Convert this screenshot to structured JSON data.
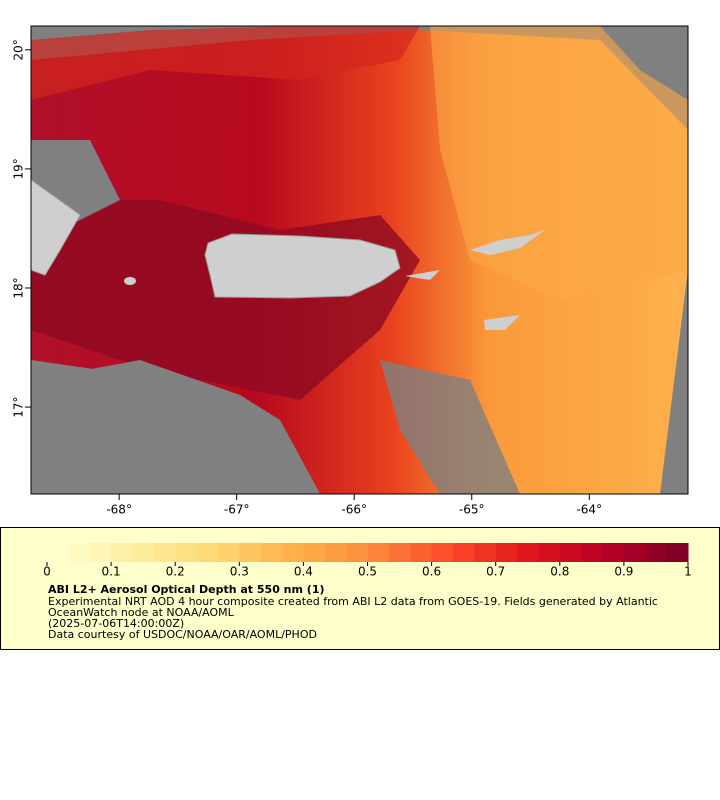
{
  "map": {
    "xlim": [
      -68.75,
      -63.16
    ],
    "ylim": [
      16.27,
      20.2
    ],
    "xticks": [
      {
        "value": -68,
        "label": "-68°"
      },
      {
        "value": -67,
        "label": "-67°"
      },
      {
        "value": -66,
        "label": "-66°"
      },
      {
        "value": -65,
        "label": "-65°"
      },
      {
        "value": -64,
        "label": "-64°"
      }
    ],
    "yticks": [
      {
        "value": 17,
        "label": "17°"
      },
      {
        "value": 18,
        "label": "18°"
      },
      {
        "value": 19,
        "label": "19°"
      },
      {
        "value": 20,
        "label": "20°"
      }
    ]
  },
  "colorbar": {
    "lim": [
      0,
      1
    ],
    "ticks": [
      0,
      0.1,
      0.2,
      0.3,
      0.4,
      0.5,
      0.6,
      0.7,
      0.8,
      0.9,
      1
    ],
    "colors": [
      "#ffffcc",
      "#ffeda0",
      "#fed976",
      "#feb24c",
      "#fd8d3c",
      "#fc4e2a",
      "#e31a1c",
      "#bd0026",
      "#800026"
    ]
  },
  "legend": {
    "title": "ABI L2+ Aerosol Optical Depth at 550 nm (1)",
    "lines": [
      "Experimental NRT AOD 4 hour composite created from ABI L2 data from GOES-19. Fields generated by Atlantic",
      "OceanWatch node at NOAA/AOML",
      "(2025-07-06T14:00:00Z)",
      "Data courtesy of USDOC/NOAA/OAR/AOML/PHOD"
    ]
  }
}
